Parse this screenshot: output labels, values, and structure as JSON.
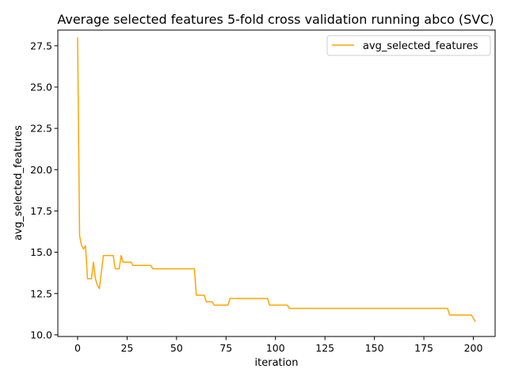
{
  "chart_data": {
    "type": "line",
    "title": "Average selected features 5-fold cross validation running abco (SVC)",
    "xlabel": "iteration",
    "ylabel": "avg_selected_features",
    "xlim": [
      -10,
      211
    ],
    "ylim": [
      9.9,
      28.45
    ],
    "xticks": [
      0,
      25,
      50,
      75,
      100,
      125,
      150,
      175,
      200
    ],
    "xtick_labels": [
      "0",
      "25",
      "50",
      "75",
      "100",
      "125",
      "150",
      "175",
      "200"
    ],
    "yticks": [
      10.0,
      12.5,
      15.0,
      17.5,
      20.0,
      22.5,
      25.0,
      27.5
    ],
    "ytick_labels": [
      "10.0",
      "12.5",
      "15.0",
      "17.5",
      "20.0",
      "22.5",
      "25.0",
      "27.5"
    ],
    "grid": false,
    "legend": "upper right",
    "series": [
      {
        "name": "avg_selected_features",
        "color": "#FFA500",
        "x": [
          0,
          1,
          2,
          3,
          4,
          5,
          6,
          7,
          8,
          9,
          10,
          11,
          12,
          13,
          14,
          15,
          16,
          17,
          18,
          19,
          20,
          21,
          22,
          23,
          25,
          27,
          28,
          30,
          35,
          37,
          38,
          40,
          45,
          50,
          55,
          58,
          59,
          60,
          62,
          64,
          65,
          66,
          68,
          69,
          70,
          75,
          76,
          77,
          78,
          80,
          85,
          90,
          96,
          97,
          98,
          100,
          105,
          106,
          107,
          108,
          110,
          120,
          140,
          160,
          180,
          187,
          188,
          189,
          190,
          195,
          199,
          200,
          201
        ],
        "y": [
          28.0,
          16.0,
          15.4,
          15.2,
          15.4,
          13.4,
          13.4,
          13.4,
          14.4,
          13.4,
          13.0,
          12.8,
          13.8,
          14.8,
          14.8,
          14.8,
          14.8,
          14.8,
          14.8,
          14.0,
          14.0,
          14.0,
          14.8,
          14.4,
          14.4,
          14.4,
          14.2,
          14.2,
          14.2,
          14.2,
          14.0,
          14.0,
          14.0,
          14.0,
          14.0,
          14.0,
          14.0,
          12.4,
          12.4,
          12.4,
          12.0,
          12.0,
          12.0,
          11.8,
          11.8,
          11.8,
          11.8,
          12.2,
          12.2,
          12.2,
          12.2,
          12.2,
          12.2,
          11.8,
          11.8,
          11.8,
          11.8,
          11.8,
          11.6,
          11.6,
          11.6,
          11.6,
          11.6,
          11.6,
          11.6,
          11.6,
          11.2,
          11.2,
          11.2,
          11.2,
          11.2,
          11.0,
          10.8
        ]
      }
    ]
  }
}
